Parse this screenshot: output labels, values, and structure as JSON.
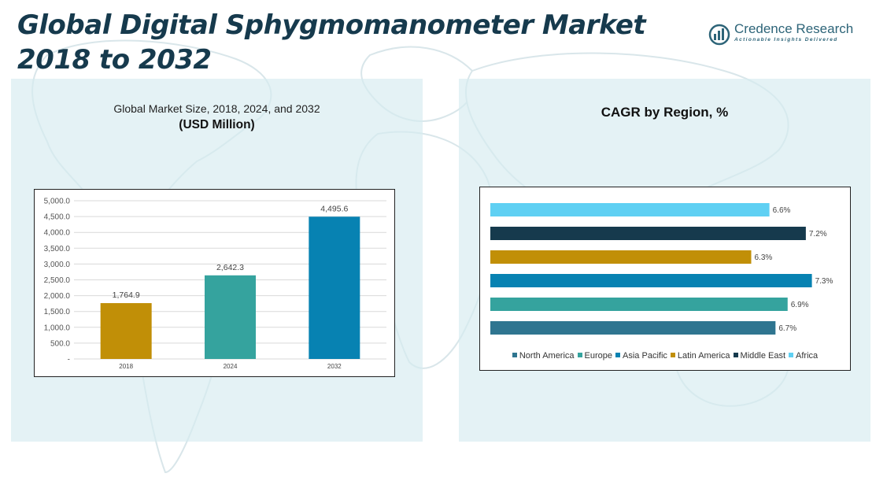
{
  "title": "Global Digital Sphygmomanometer Market 2018 to 2032",
  "logo": {
    "name": "Credence Research",
    "tagline": "Actionable Insights Delivered",
    "icon": "credence-logo-icon",
    "color": "#2d6478"
  },
  "left_panel": {
    "subtitle": "Global Market Size, 2018, 2024, and 2032",
    "unit": "(USD Million)"
  },
  "right_panel": {
    "title": "CAGR by Region, %"
  },
  "chart_data": [
    {
      "type": "bar",
      "categories": [
        "2018",
        "2024",
        "2032"
      ],
      "values": [
        1764.9,
        2642.3,
        4495.6
      ],
      "value_labels": [
        "1,764.9",
        "2,642.3",
        "4,495.6"
      ],
      "colors": [
        "#c18f07",
        "#35a39e",
        "#0782b2"
      ],
      "ylim": [
        0,
        5000
      ],
      "yticks": [
        0,
        500,
        1000,
        1500,
        2000,
        2500,
        3000,
        3500,
        4000,
        4500,
        5000
      ],
      "ytick_labels": [
        "-",
        "500.0",
        "1,000.0",
        "1,500.0",
        "2,000.0",
        "2,500.0",
        "3,000.0",
        "3,500.0",
        "4,000.0",
        "4,500.0",
        "5,000.0"
      ],
      "grid": true,
      "legend": "none"
    },
    {
      "type": "bar",
      "orientation": "horizontal",
      "categories": [
        "North America",
        "Europe",
        "Asia Pacific",
        "Latin America",
        "Middle East",
        "Africa"
      ],
      "values": [
        6.7,
        6.9,
        7.3,
        6.3,
        7.2,
        6.6
      ],
      "value_labels": [
        "6.7%",
        "6.9%",
        "7.3%",
        "6.3%",
        "7.2%",
        "6.6%"
      ],
      "colors": [
        "#2f7590",
        "#35a39e",
        "#0782b2",
        "#c18f07",
        "#163a4d",
        "#5fd0f3"
      ],
      "xlim": [
        2.0,
        7.5
      ],
      "legend": "bottom"
    }
  ]
}
